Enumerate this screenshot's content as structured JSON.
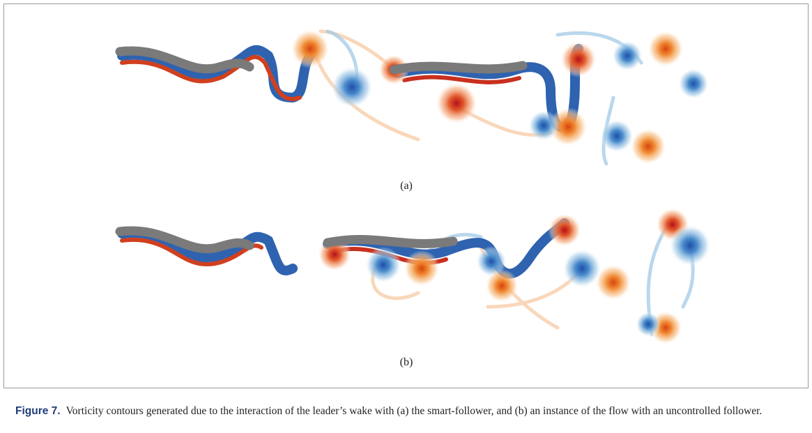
{
  "figure": {
    "panels": [
      {
        "label": "(a)"
      },
      {
        "label": "(b)"
      }
    ],
    "caption": {
      "label": "Figure 7.",
      "text": "Vorticity contours generated due to the interaction of the leader’s wake with (a) the smart-follower, and (b) an instance of the flow with an uncontrolled follower."
    }
  }
}
